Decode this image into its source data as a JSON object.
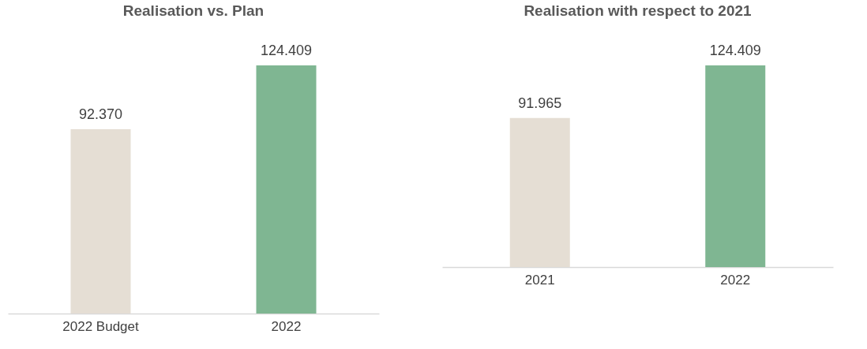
{
  "chart_data": [
    {
      "type": "bar",
      "title": "Realisation vs. Plan",
      "categories": [
        "2022 Budget",
        "2022"
      ],
      "values": [
        92370,
        124409
      ],
      "colors": [
        "#e5ded4",
        "#7fb692"
      ],
      "value_labels": [
        "92.370",
        "124.409"
      ]
    },
    {
      "type": "bar",
      "title": "Realisation with respect to 2021",
      "categories": [
        "2021",
        "2022"
      ],
      "values": [
        91965,
        124409
      ],
      "colors": [
        "#e5ded4",
        "#7fb692"
      ],
      "value_labels": [
        "91.965",
        "124.409"
      ]
    }
  ]
}
